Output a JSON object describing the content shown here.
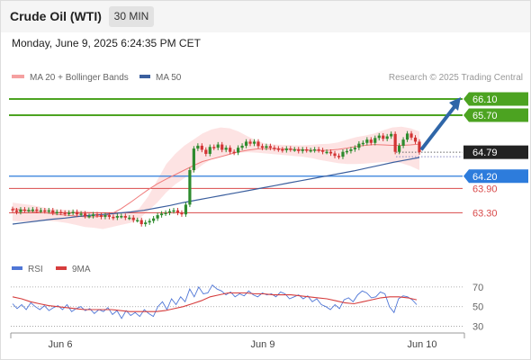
{
  "header": {
    "title": "Crude Oil (WTI)",
    "timeframe": "30 MIN"
  },
  "datetime": "Monday, June 9, 2025 6:24:35 PM CET",
  "credit": "Research © 2025 Trading Central",
  "colors": {
    "resistance": "#4ca321",
    "support": "#2d7cdc",
    "level": "#d94a4a",
    "price": "#222222",
    "ma50": "#3b5f9e",
    "ma20": "#f07b7b",
    "band": "#fcdcdc",
    "rsi": "#4f76d6",
    "rsi_ma": "#d63d3d",
    "up_candle": "#2e8b2e",
    "down_candle": "#d23434",
    "arrow": "#2f66a8"
  },
  "chart_data": [
    {
      "type": "candlestick",
      "title": "Crude Oil (WTI)",
      "legend": [
        {
          "name": "MA 20 + Bollinger Bands",
          "color": "#f07b7b"
        },
        {
          "name": "MA 50",
          "color": "#3b5f9e"
        }
      ],
      "legend_position": "top-left",
      "ylim": [
        62.6,
        66.5
      ],
      "x_ticks": [
        "Jun 6",
        "Jun 9",
        "Jun 10"
      ],
      "levels": [
        {
          "kind": "resistance",
          "value": 66.1,
          "label": "66.10",
          "color": "#4ca321"
        },
        {
          "kind": "resistance",
          "value": 65.7,
          "label": "65.70",
          "color": "#4ca321"
        },
        {
          "kind": "last",
          "value": 64.79,
          "label": "64.79",
          "color": "#222222"
        },
        {
          "kind": "support",
          "value": 64.2,
          "label": "64.20",
          "color": "#2d7cdc"
        },
        {
          "kind": "support",
          "value": 63.9,
          "label": "63.90",
          "color": "#d94a4a"
        },
        {
          "kind": "support",
          "value": 63.3,
          "label": "63.30",
          "color": "#d94a4a"
        }
      ],
      "close": [
        63.36,
        63.32,
        63.38,
        63.36,
        63.37,
        63.38,
        63.35,
        63.36,
        63.34,
        63.36,
        63.3,
        63.32,
        63.3,
        63.28,
        63.3,
        63.32,
        63.26,
        63.28,
        63.22,
        63.22,
        63.26,
        63.24,
        63.2,
        63.24,
        63.2,
        63.18,
        63.22,
        63.22,
        63.18,
        63.18,
        63.12,
        63.12,
        63.02,
        63.06,
        63.1,
        63.16,
        63.24,
        63.28,
        63.3,
        63.34,
        63.36,
        63.3,
        63.26,
        63.5,
        64.35,
        64.88,
        64.95,
        64.85,
        64.75,
        64.92,
        64.9,
        64.98,
        64.85,
        64.9,
        64.8,
        64.78,
        64.9,
        64.95,
        65.05,
        65.0,
        65.05,
        64.94,
        64.9,
        64.94,
        64.9,
        64.88,
        64.86,
        64.84,
        64.88,
        64.86,
        64.86,
        64.82,
        64.86,
        64.84,
        64.84,
        64.86,
        64.84,
        64.8,
        64.8,
        64.76,
        64.7,
        64.68,
        64.8,
        64.82,
        64.86,
        64.9,
        65.0,
        65.02,
        65.1,
        65.02,
        65.14,
        65.2,
        65.12,
        65.18,
        65.24,
        64.8,
        64.95,
        65.1,
        65.25,
        65.15,
        65.05,
        64.79
      ],
      "ma20": [
        63.4,
        63.37,
        63.34,
        63.31,
        63.29,
        63.26,
        63.24,
        63.22,
        63.2,
        63.2,
        63.22,
        63.28,
        63.4,
        63.55,
        63.71,
        63.87,
        64.01,
        64.13,
        64.24,
        64.35,
        64.46,
        64.56,
        64.62,
        64.68,
        64.74,
        64.8,
        64.84,
        64.87,
        64.88,
        64.88,
        64.87,
        64.86,
        64.85,
        64.84,
        64.83,
        64.84,
        64.86,
        64.89,
        64.93,
        64.96,
        64.98,
        64.97,
        64.96,
        64.96,
        64.97,
        64.99
      ],
      "ma50": [
        63.02,
        63.06,
        63.1,
        63.14,
        63.17,
        63.21,
        63.24,
        63.26,
        63.29,
        63.32,
        63.36,
        63.42,
        63.48,
        63.55,
        63.61,
        63.67,
        63.73,
        63.79,
        63.85,
        63.91,
        63.97,
        64.03,
        64.09,
        64.15,
        64.21,
        64.27,
        64.33,
        64.4,
        64.47,
        64.54,
        64.6,
        64.66
      ],
      "band_upper": [
        63.55,
        63.52,
        63.49,
        63.45,
        63.4,
        63.38,
        63.37,
        63.36,
        63.35,
        63.32,
        63.3,
        63.3,
        63.31,
        63.33,
        63.4,
        63.7,
        64.1,
        64.5,
        64.75,
        64.95,
        65.1,
        65.25,
        65.35,
        65.4,
        65.38,
        65.3,
        65.18,
        65.08,
        65.0,
        64.98,
        64.97,
        64.96,
        64.96,
        64.97,
        64.99,
        65.0,
        65.03,
        65.1,
        65.16,
        65.2,
        65.25,
        65.33,
        65.4,
        65.42,
        65.38,
        65.3
      ],
      "band_lower": [
        63.1,
        63.08,
        63.08,
        63.1,
        63.1,
        63.08,
        63.05,
        63.0,
        62.95,
        62.93,
        62.9,
        62.95,
        63.0,
        63.05,
        63.15,
        63.35,
        63.55,
        63.8,
        64.0,
        64.15,
        64.3,
        64.48,
        64.62,
        64.7,
        64.75,
        64.78,
        64.79,
        64.78,
        64.76,
        64.74,
        64.72,
        64.7,
        64.68,
        64.65,
        64.6,
        64.56,
        64.52,
        64.5,
        64.5,
        64.51,
        64.53,
        64.55,
        64.55,
        64.52,
        64.45,
        64.35
      ]
    },
    {
      "type": "line",
      "title": "RSI",
      "legend": [
        {
          "name": "RSI",
          "color": "#4f76d6"
        },
        {
          "name": "9MA",
          "color": "#d63d3d"
        }
      ],
      "legend_position": "top-left",
      "ylim": [
        25,
        80
      ],
      "y_ticks": [
        70,
        50,
        30
      ],
      "series": [
        {
          "name": "RSI",
          "values": [
            53,
            48,
            52,
            47,
            54,
            50,
            47,
            51,
            46,
            49,
            51,
            47,
            52,
            45,
            48,
            50,
            46,
            48,
            43,
            47,
            45,
            49,
            42,
            46,
            38,
            46,
            41,
            44,
            40,
            47,
            43,
            40,
            50,
            55,
            47,
            58,
            52,
            60,
            55,
            68,
            60,
            70,
            63,
            64,
            72,
            68,
            66,
            62,
            65,
            60,
            63,
            61,
            66,
            62,
            60,
            64,
            62,
            63,
            60,
            65,
            63,
            58,
            60,
            62,
            58,
            61,
            55,
            58,
            52,
            50,
            47,
            52,
            48,
            57,
            59,
            55,
            62,
            66,
            64,
            59,
            60,
            65,
            63,
            50,
            44,
            58,
            61,
            60,
            57,
            52
          ]
        },
        {
          "name": "9MA",
          "values": [
            60,
            58,
            55,
            53,
            51,
            50,
            49,
            48,
            47,
            47,
            47,
            47,
            46,
            45,
            45,
            45,
            45,
            46,
            48,
            50,
            53,
            56,
            60,
            62,
            64,
            64,
            64,
            63,
            63,
            62,
            62,
            62,
            61,
            60,
            59,
            58,
            56,
            54,
            53,
            55,
            57,
            59,
            60,
            60,
            59,
            57
          ]
        }
      ]
    }
  ]
}
